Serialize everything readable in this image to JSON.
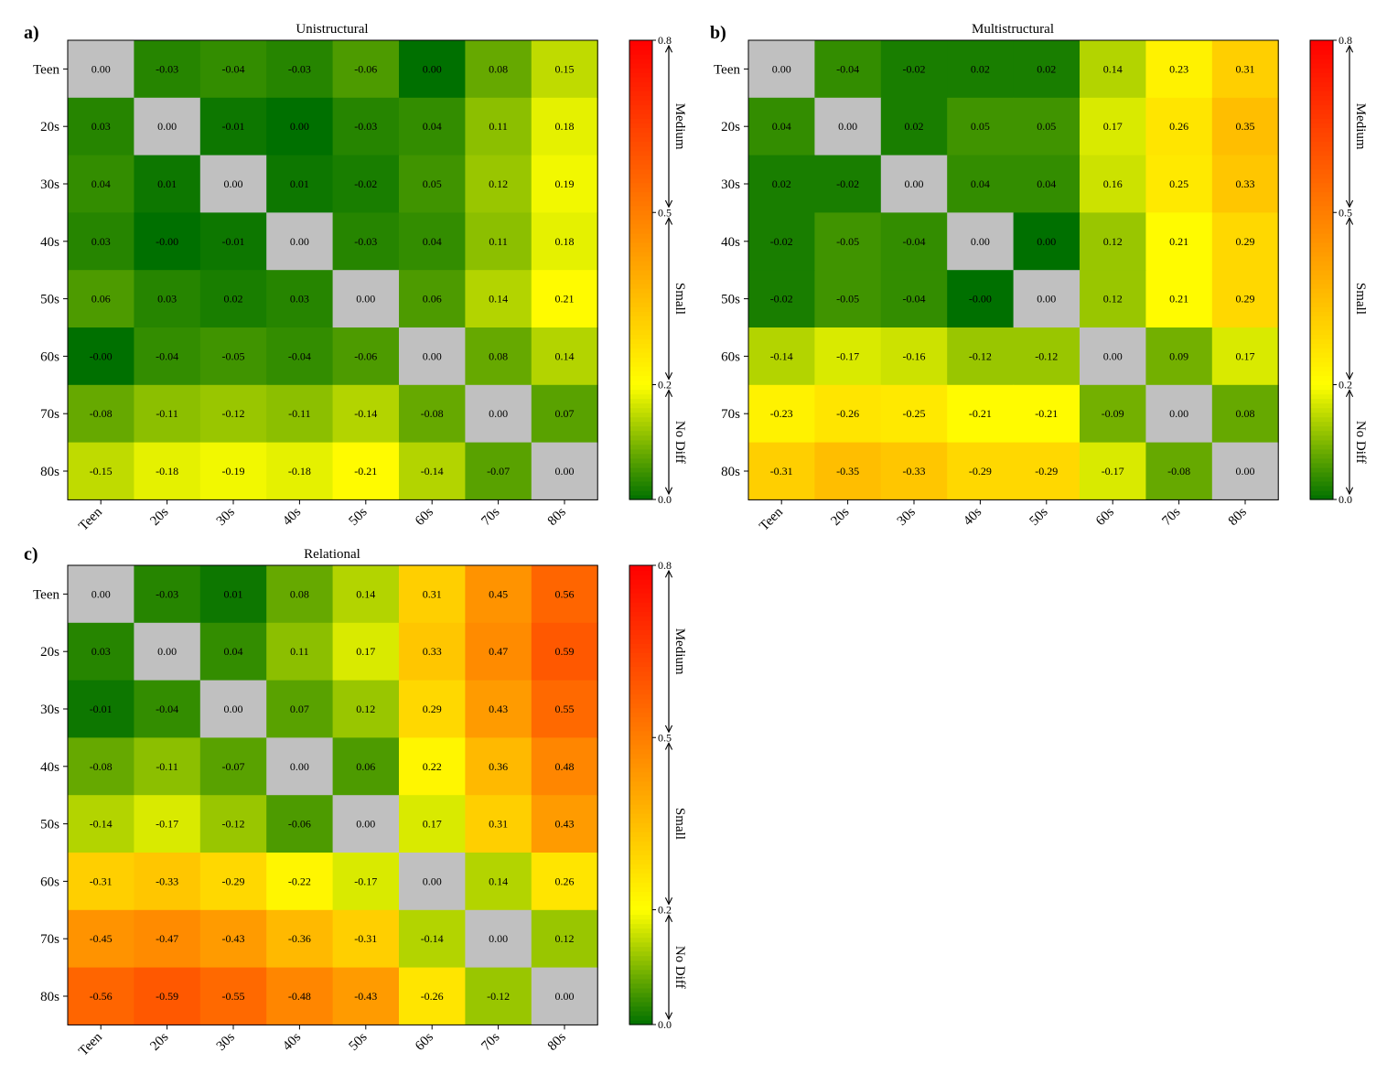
{
  "chart_data": [
    {
      "panel_label": "a)",
      "type": "heatmap",
      "title": "Unistructural",
      "row_labels": [
        "Teen",
        "20s",
        "30s",
        "40s",
        "50s",
        "60s",
        "70s",
        "80s"
      ],
      "col_labels": [
        "Teen",
        "20s",
        "30s",
        "40s",
        "50s",
        "60s",
        "70s",
        "80s"
      ],
      "values": [
        [
          0.0,
          -0.03,
          -0.04,
          -0.03,
          -0.06,
          0.0,
          0.08,
          0.15
        ],
        [
          0.03,
          0.0,
          -0.01,
          0.0,
          -0.03,
          0.04,
          0.11,
          0.18
        ],
        [
          0.04,
          0.01,
          0.0,
          0.01,
          -0.02,
          0.05,
          0.12,
          0.19
        ],
        [
          0.03,
          -0.0,
          -0.01,
          0.0,
          -0.03,
          0.04,
          0.11,
          0.18
        ],
        [
          0.06,
          0.03,
          0.02,
          0.03,
          0.0,
          0.06,
          0.14,
          0.21
        ],
        [
          -0.0,
          -0.04,
          -0.05,
          -0.04,
          -0.06,
          0.0,
          0.08,
          0.14
        ],
        [
          -0.08,
          -0.11,
          -0.12,
          -0.11,
          -0.14,
          -0.08,
          0.0,
          0.07
        ],
        [
          -0.15,
          -0.18,
          -0.19,
          -0.18,
          -0.21,
          -0.14,
          -0.07,
          0.0
        ]
      ],
      "colorbar": {
        "range": [
          0.0,
          0.8
        ],
        "ticks": [
          "0.0",
          "0.2",
          "0.5",
          "0.8"
        ],
        "bands": [
          {
            "label": "No Diff",
            "from": 0.0,
            "to": 0.2
          },
          {
            "label": "Small",
            "from": 0.2,
            "to": 0.5
          },
          {
            "label": "Medium",
            "from": 0.5,
            "to": 0.8
          }
        ]
      }
    },
    {
      "panel_label": "b)",
      "type": "heatmap",
      "title": "Multistructural",
      "row_labels": [
        "Teen",
        "20s",
        "30s",
        "40s",
        "50s",
        "60s",
        "70s",
        "80s"
      ],
      "col_labels": [
        "Teen",
        "20s",
        "30s",
        "40s",
        "50s",
        "60s",
        "70s",
        "80s"
      ],
      "values": [
        [
          0.0,
          -0.04,
          -0.02,
          0.02,
          0.02,
          0.14,
          0.23,
          0.31
        ],
        [
          0.04,
          0.0,
          0.02,
          0.05,
          0.05,
          0.17,
          0.26,
          0.35
        ],
        [
          0.02,
          -0.02,
          0.0,
          0.04,
          0.04,
          0.16,
          0.25,
          0.33
        ],
        [
          -0.02,
          -0.05,
          -0.04,
          0.0,
          0.0,
          0.12,
          0.21,
          0.29
        ],
        [
          -0.02,
          -0.05,
          -0.04,
          -0.0,
          0.0,
          0.12,
          0.21,
          0.29
        ],
        [
          -0.14,
          -0.17,
          -0.16,
          -0.12,
          -0.12,
          0.0,
          0.09,
          0.17
        ],
        [
          -0.23,
          -0.26,
          -0.25,
          -0.21,
          -0.21,
          -0.09,
          0.0,
          0.08
        ],
        [
          -0.31,
          -0.35,
          -0.33,
          -0.29,
          -0.29,
          -0.17,
          -0.08,
          0.0
        ]
      ],
      "colorbar": {
        "range": [
          0.0,
          0.8
        ],
        "ticks": [
          "0.0",
          "0.2",
          "0.5",
          "0.8"
        ],
        "bands": [
          {
            "label": "No Diff",
            "from": 0.0,
            "to": 0.2
          },
          {
            "label": "Small",
            "from": 0.2,
            "to": 0.5
          },
          {
            "label": "Medium",
            "from": 0.5,
            "to": 0.8
          }
        ]
      }
    },
    {
      "panel_label": "c)",
      "type": "heatmap",
      "title": "Relational",
      "row_labels": [
        "Teen",
        "20s",
        "30s",
        "40s",
        "50s",
        "60s",
        "70s",
        "80s"
      ],
      "col_labels": [
        "Teen",
        "20s",
        "30s",
        "40s",
        "50s",
        "60s",
        "70s",
        "80s"
      ],
      "values": [
        [
          0.0,
          -0.03,
          0.01,
          0.08,
          0.14,
          0.31,
          0.45,
          0.56
        ],
        [
          0.03,
          0.0,
          0.04,
          0.11,
          0.17,
          0.33,
          0.47,
          0.59
        ],
        [
          -0.01,
          -0.04,
          0.0,
          0.07,
          0.12,
          0.29,
          0.43,
          0.55
        ],
        [
          -0.08,
          -0.11,
          -0.07,
          0.0,
          0.06,
          0.22,
          0.36,
          0.48
        ],
        [
          -0.14,
          -0.17,
          -0.12,
          -0.06,
          0.0,
          0.17,
          0.31,
          0.43
        ],
        [
          -0.31,
          -0.33,
          -0.29,
          -0.22,
          -0.17,
          0.0,
          0.14,
          0.26
        ],
        [
          -0.45,
          -0.47,
          -0.43,
          -0.36,
          -0.31,
          -0.14,
          0.0,
          0.12
        ],
        [
          -0.56,
          -0.59,
          -0.55,
          -0.48,
          -0.43,
          -0.26,
          -0.12,
          0.0
        ]
      ],
      "colorbar": {
        "range": [
          0.0,
          0.8
        ],
        "ticks": [
          "0.0",
          "0.2",
          "0.5",
          "0.8"
        ],
        "bands": [
          {
            "label": "No Diff",
            "from": 0.0,
            "to": 0.2
          },
          {
            "label": "Small",
            "from": 0.2,
            "to": 0.5
          },
          {
            "label": "Medium",
            "from": 0.5,
            "to": 0.8
          }
        ]
      }
    }
  ],
  "colors": {
    "diagonal": "#c0c0c0",
    "scale_stops": [
      "#007000",
      "#ffff00",
      "#ffa800",
      "#ff0000"
    ]
  }
}
